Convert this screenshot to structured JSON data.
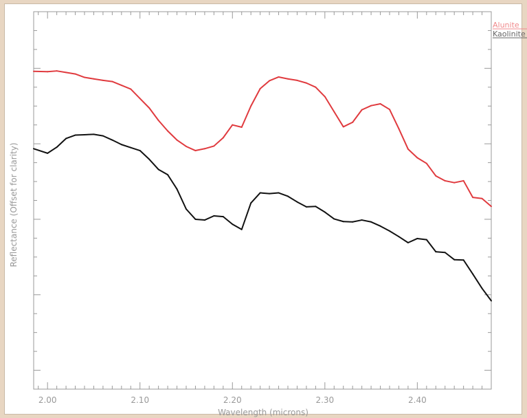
{
  "chart_data": {
    "type": "line",
    "title": "",
    "xlabel": "Wavelength (microns)",
    "ylabel": "Reflectance (Offset for clarity)",
    "xlim": [
      1.985,
      2.48
    ],
    "ylim": [
      0,
      1
    ],
    "x_ticks": [
      "2.00",
      "2.10",
      "2.20",
      "2.30",
      "2.40"
    ],
    "x_tick_values": [
      2.0,
      2.1,
      2.2,
      2.3,
      2.4
    ],
    "y_major_ticks": [
      0.05,
      0.25,
      0.45,
      0.65,
      0.85
    ],
    "grid": false,
    "legend_position": "top-right, outside plot",
    "series": [
      {
        "name": "Alunite",
        "color": "#e03a3e",
        "x": [
          1.985,
          2.0,
          2.01,
          2.02,
          2.03,
          2.04,
          2.05,
          2.06,
          2.07,
          2.08,
          2.09,
          2.1,
          2.11,
          2.12,
          2.13,
          2.14,
          2.15,
          2.16,
          2.17,
          2.18,
          2.19,
          2.2,
          2.21,
          2.22,
          2.23,
          2.24,
          2.25,
          2.26,
          2.27,
          2.28,
          2.29,
          2.3,
          2.31,
          2.32,
          2.33,
          2.34,
          2.35,
          2.36,
          2.37,
          2.38,
          2.39,
          2.4,
          2.41,
          2.42,
          2.43,
          2.44,
          2.45,
          2.46,
          2.47,
          2.48
        ],
        "values": [
          0.842,
          0.841,
          0.843,
          0.839,
          0.835,
          0.826,
          0.822,
          0.818,
          0.815,
          0.805,
          0.795,
          0.77,
          0.745,
          0.712,
          0.684,
          0.66,
          0.643,
          0.632,
          0.637,
          0.644,
          0.666,
          0.7,
          0.694,
          0.75,
          0.796,
          0.817,
          0.827,
          0.822,
          0.818,
          0.811,
          0.8,
          0.775,
          0.735,
          0.695,
          0.707,
          0.74,
          0.751,
          0.756,
          0.741,
          0.69,
          0.636,
          0.613,
          0.598,
          0.565,
          0.552,
          0.547,
          0.552,
          0.508,
          0.505,
          0.484
        ]
      },
      {
        "name": "Kaolinite",
        "color": "#111111",
        "x": [
          1.985,
          2.0,
          2.01,
          2.02,
          2.03,
          2.04,
          2.05,
          2.06,
          2.07,
          2.08,
          2.09,
          2.1,
          2.11,
          2.12,
          2.13,
          2.14,
          2.15,
          2.16,
          2.17,
          2.18,
          2.19,
          2.2,
          2.21,
          2.22,
          2.23,
          2.24,
          2.25,
          2.26,
          2.27,
          2.28,
          2.29,
          2.3,
          2.31,
          2.32,
          2.33,
          2.34,
          2.35,
          2.36,
          2.37,
          2.38,
          2.39,
          2.4,
          2.41,
          2.42,
          2.43,
          2.44,
          2.45,
          2.46,
          2.47,
          2.48
        ],
        "values": [
          0.637,
          0.625,
          0.641,
          0.664,
          0.673,
          0.674,
          0.675,
          0.671,
          0.66,
          0.648,
          0.64,
          0.632,
          0.609,
          0.582,
          0.568,
          0.53,
          0.477,
          0.45,
          0.448,
          0.459,
          0.457,
          0.437,
          0.423,
          0.493,
          0.52,
          0.518,
          0.52,
          0.511,
          0.496,
          0.483,
          0.484,
          0.469,
          0.451,
          0.444,
          0.443,
          0.448,
          0.443,
          0.432,
          0.419,
          0.404,
          0.388,
          0.399,
          0.396,
          0.364,
          0.362,
          0.343,
          0.342,
          0.305,
          0.267,
          0.234
        ]
      }
    ]
  }
}
